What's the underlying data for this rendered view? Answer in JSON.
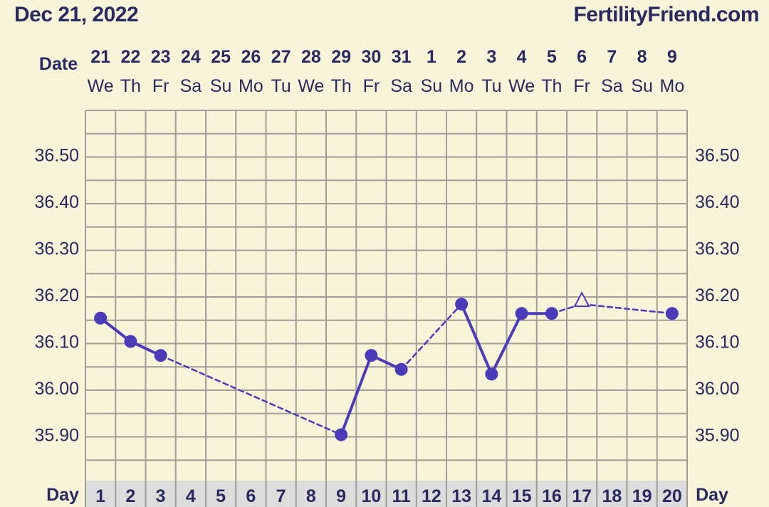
{
  "header": {
    "date": "Dec 21, 2022",
    "site": "FertilityFriend.com",
    "date_row_label": "Date",
    "day_row_label": "Day"
  },
  "colors": {
    "background": "#f8f4da",
    "grid": "#a19d97",
    "series": "#4b3bb8",
    "text": "#2a2960",
    "day_row_bg": "#dcdcdc"
  },
  "chart_data": {
    "type": "line",
    "title": "",
    "xlabel": "Day",
    "ylabel": "",
    "y_ticks": [
      "36.50",
      "36.40",
      "36.30",
      "36.20",
      "36.10",
      "36.00",
      "35.90"
    ],
    "ylim": [
      35.8,
      36.6
    ],
    "dates": [
      "21",
      "22",
      "23",
      "24",
      "25",
      "26",
      "27",
      "28",
      "29",
      "30",
      "31",
      "1",
      "2",
      "3",
      "4",
      "5",
      "6",
      "7",
      "8",
      "9"
    ],
    "weekdays": [
      "We",
      "Th",
      "Fr",
      "Sa",
      "Su",
      "Mo",
      "Tu",
      "We",
      "Th",
      "Fr",
      "Sa",
      "Su",
      "Mo",
      "Tu",
      "We",
      "Th",
      "Fr",
      "Sa",
      "Su",
      "Mo"
    ],
    "days": [
      "1",
      "2",
      "3",
      "4",
      "5",
      "6",
      "7",
      "8",
      "9",
      "10",
      "11",
      "12",
      "13",
      "14",
      "15",
      "16",
      "17",
      "18",
      "19",
      "20"
    ],
    "series": [
      {
        "points": [
          {
            "day": 1,
            "temp": 36.15,
            "marker": "circle"
          },
          {
            "day": 2,
            "temp": 36.1,
            "marker": "circle"
          },
          {
            "day": 3,
            "temp": 36.07,
            "marker": "circle"
          },
          {
            "day": 9,
            "temp": 35.9,
            "marker": "circle"
          },
          {
            "day": 10,
            "temp": 36.07,
            "marker": "circle"
          },
          {
            "day": 11,
            "temp": 36.04,
            "marker": "circle"
          },
          {
            "day": 13,
            "temp": 36.18,
            "marker": "circle"
          },
          {
            "day": 14,
            "temp": 36.03,
            "marker": "circle"
          },
          {
            "day": 15,
            "temp": 36.16,
            "marker": "circle"
          },
          {
            "day": 16,
            "temp": 36.16,
            "marker": "circle"
          },
          {
            "day": 17,
            "temp": 36.18,
            "marker": "open-triangle"
          },
          {
            "day": 20,
            "temp": 36.16,
            "marker": "circle"
          }
        ]
      }
    ],
    "grid": true
  }
}
